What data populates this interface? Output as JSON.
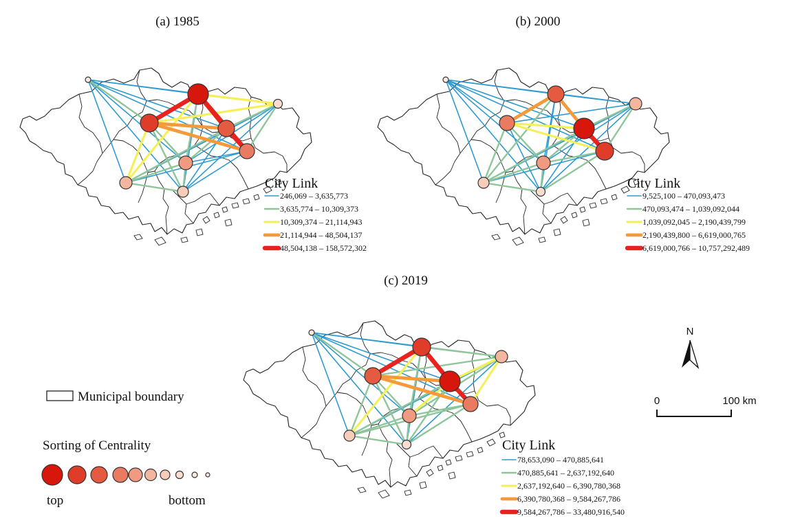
{
  "colors": {
    "class1": "#2e9bd0",
    "class2": "#8fc59a",
    "class3": "#f5f05a",
    "class4": "#f59a3a",
    "class5": "#e8231e",
    "node_fills": [
      "#d7160c",
      "#df3d2a",
      "#e55b42",
      "#eb7b60",
      "#f09a82",
      "#f4b69e",
      "#f7ccb8",
      "#f9ddd0",
      "#fbe9e0"
    ]
  },
  "panels": [
    {
      "title": "(a) 1985",
      "legend_title": "City Link",
      "legend_items": [
        "246,069 – 3,635,773",
        "3,635,774 – 10,309,373",
        "10,309,374 – 21,114,943",
        "21,114,944 – 48,504,137",
        "48,504,138 – 158,572,302"
      ],
      "node_ranks": {
        "ZQ": 9,
        "GZ": 1,
        "FS": 2,
        "HZ": 8,
        "DG": 3,
        "SZ": 4,
        "JM": 6,
        "ZH": 7,
        "ZS": 5
      },
      "links": [
        [
          "ZQ",
          "GZ",
          1
        ],
        [
          "ZQ",
          "FS",
          2
        ],
        [
          "ZQ",
          "HZ",
          1
        ],
        [
          "ZQ",
          "DG",
          1
        ],
        [
          "ZQ",
          "SZ",
          1
        ],
        [
          "ZQ",
          "JM",
          1
        ],
        [
          "ZQ",
          "ZS",
          1
        ],
        [
          "ZQ",
          "ZH",
          1
        ],
        [
          "GZ",
          "FS",
          5
        ],
        [
          "GZ",
          "DG",
          5
        ],
        [
          "GZ",
          "SZ",
          5
        ],
        [
          "GZ",
          "HZ",
          3
        ],
        [
          "GZ",
          "JM",
          3
        ],
        [
          "GZ",
          "ZS",
          2
        ],
        [
          "GZ",
          "ZH",
          1
        ],
        [
          "FS",
          "DG",
          4
        ],
        [
          "FS",
          "HZ",
          3
        ],
        [
          "FS",
          "SZ",
          4
        ],
        [
          "FS",
          "JM",
          3
        ],
        [
          "FS",
          "ZS",
          2
        ],
        [
          "FS",
          "ZH",
          2
        ],
        [
          "DG",
          "SZ",
          5
        ],
        [
          "DG",
          "HZ",
          2
        ],
        [
          "DG",
          "JM",
          2
        ],
        [
          "DG",
          "ZS",
          2
        ],
        [
          "DG",
          "ZH",
          1
        ],
        [
          "SZ",
          "HZ",
          2
        ],
        [
          "SZ",
          "JM",
          1
        ],
        [
          "SZ",
          "ZS",
          1
        ],
        [
          "SZ",
          "ZH",
          1
        ],
        [
          "HZ",
          "JM",
          1
        ],
        [
          "HZ",
          "ZS",
          1
        ],
        [
          "HZ",
          "ZH",
          1
        ],
        [
          "JM",
          "ZS",
          2
        ],
        [
          "JM",
          "ZH",
          2
        ],
        [
          "ZS",
          "ZH",
          2
        ]
      ]
    },
    {
      "title": "(b) 2000",
      "legend_title": "City Link",
      "legend_items": [
        "9,525,100 – 470,093,473",
        "470,093,474 – 1,039,092,044",
        "1,039,092,045 – 2,190,439,799",
        "2,190,439,800 – 6,619,000,765",
        "6,619,000,766 – 10,757,292,489"
      ],
      "node_ranks": {
        "ZQ": 9,
        "GZ": 3,
        "FS": 4,
        "HZ": 6,
        "DG": 1,
        "SZ": 2,
        "JM": 7,
        "ZH": 8,
        "ZS": 5
      },
      "links": [
        [
          "ZQ",
          "GZ",
          1
        ],
        [
          "ZQ",
          "FS",
          1
        ],
        [
          "ZQ",
          "HZ",
          1
        ],
        [
          "ZQ",
          "DG",
          1
        ],
        [
          "ZQ",
          "SZ",
          1
        ],
        [
          "ZQ",
          "JM",
          1
        ],
        [
          "ZQ",
          "ZS",
          1
        ],
        [
          "ZQ",
          "ZH",
          1
        ],
        [
          "GZ",
          "FS",
          4
        ],
        [
          "GZ",
          "DG",
          4
        ],
        [
          "GZ",
          "SZ",
          2
        ],
        [
          "GZ",
          "HZ",
          1
        ],
        [
          "GZ",
          "JM",
          2
        ],
        [
          "GZ",
          "ZS",
          1
        ],
        [
          "GZ",
          "ZH",
          1
        ],
        [
          "FS",
          "DG",
          3
        ],
        [
          "FS",
          "HZ",
          1
        ],
        [
          "FS",
          "SZ",
          3
        ],
        [
          "FS",
          "JM",
          2
        ],
        [
          "FS",
          "ZS",
          2
        ],
        [
          "FS",
          "ZH",
          1
        ],
        [
          "DG",
          "SZ",
          5
        ],
        [
          "DG",
          "HZ",
          2
        ],
        [
          "DG",
          "JM",
          2
        ],
        [
          "DG",
          "ZS",
          2
        ],
        [
          "DG",
          "ZH",
          1
        ],
        [
          "SZ",
          "HZ",
          2
        ],
        [
          "SZ",
          "JM",
          1
        ],
        [
          "SZ",
          "ZS",
          2
        ],
        [
          "SZ",
          "ZH",
          2
        ],
        [
          "HZ",
          "JM",
          1
        ],
        [
          "HZ",
          "ZS",
          1
        ],
        [
          "HZ",
          "ZH",
          1
        ],
        [
          "JM",
          "ZS",
          2
        ],
        [
          "JM",
          "ZH",
          2
        ],
        [
          "ZS",
          "ZH",
          2
        ]
      ]
    },
    {
      "title": "(c) 2019",
      "legend_title": "City Link",
      "legend_items": [
        "78,653,090 – 470,885,641",
        "470,885,641 – 2,637,192,640",
        "2,637,192,640 – 6,390,780,368",
        "6,390,780,368 – 9,584,267,786",
        "9,584,267,786 – 33,480,916,540"
      ],
      "node_ranks": {
        "ZQ": 9,
        "GZ": 2,
        "FS": 3,
        "HZ": 6,
        "DG": 1,
        "SZ": 4,
        "JM": 7,
        "ZH": 8,
        "ZS": 5
      },
      "links": [
        [
          "ZQ",
          "GZ",
          1
        ],
        [
          "ZQ",
          "FS",
          2
        ],
        [
          "ZQ",
          "HZ",
          1
        ],
        [
          "ZQ",
          "DG",
          1
        ],
        [
          "ZQ",
          "SZ",
          1
        ],
        [
          "ZQ",
          "JM",
          1
        ],
        [
          "ZQ",
          "ZS",
          1
        ],
        [
          "ZQ",
          "ZH",
          1
        ],
        [
          "GZ",
          "FS",
          5
        ],
        [
          "GZ",
          "DG",
          5
        ],
        [
          "GZ",
          "SZ",
          3
        ],
        [
          "GZ",
          "HZ",
          2
        ],
        [
          "GZ",
          "JM",
          3
        ],
        [
          "GZ",
          "ZS",
          2
        ],
        [
          "GZ",
          "ZH",
          1
        ],
        [
          "FS",
          "DG",
          4
        ],
        [
          "FS",
          "HZ",
          2
        ],
        [
          "FS",
          "SZ",
          4
        ],
        [
          "FS",
          "JM",
          2
        ],
        [
          "FS",
          "ZS",
          2
        ],
        [
          "FS",
          "ZH",
          2
        ],
        [
          "DG",
          "SZ",
          5
        ],
        [
          "DG",
          "HZ",
          3
        ],
        [
          "DG",
          "JM",
          2
        ],
        [
          "DG",
          "ZS",
          3
        ],
        [
          "DG",
          "ZH",
          2
        ],
        [
          "SZ",
          "HZ",
          3
        ],
        [
          "SZ",
          "JM",
          2
        ],
        [
          "SZ",
          "ZS",
          2
        ],
        [
          "SZ",
          "ZH",
          2
        ],
        [
          "HZ",
          "JM",
          1
        ],
        [
          "HZ",
          "ZS",
          2
        ],
        [
          "HZ",
          "ZH",
          1
        ],
        [
          "JM",
          "ZS",
          2
        ],
        [
          "JM",
          "ZH",
          2
        ],
        [
          "ZS",
          "ZH",
          2
        ]
      ]
    }
  ],
  "legend": {
    "boundary_label": "Municipal boundary",
    "centrality_title": "Sorting of Centrality",
    "top_label": "top",
    "bottom_label": "bottom"
  },
  "north_arrow": {
    "label": "N"
  },
  "scale_bar": {
    "start_label": "0",
    "end_label": "100 km"
  }
}
